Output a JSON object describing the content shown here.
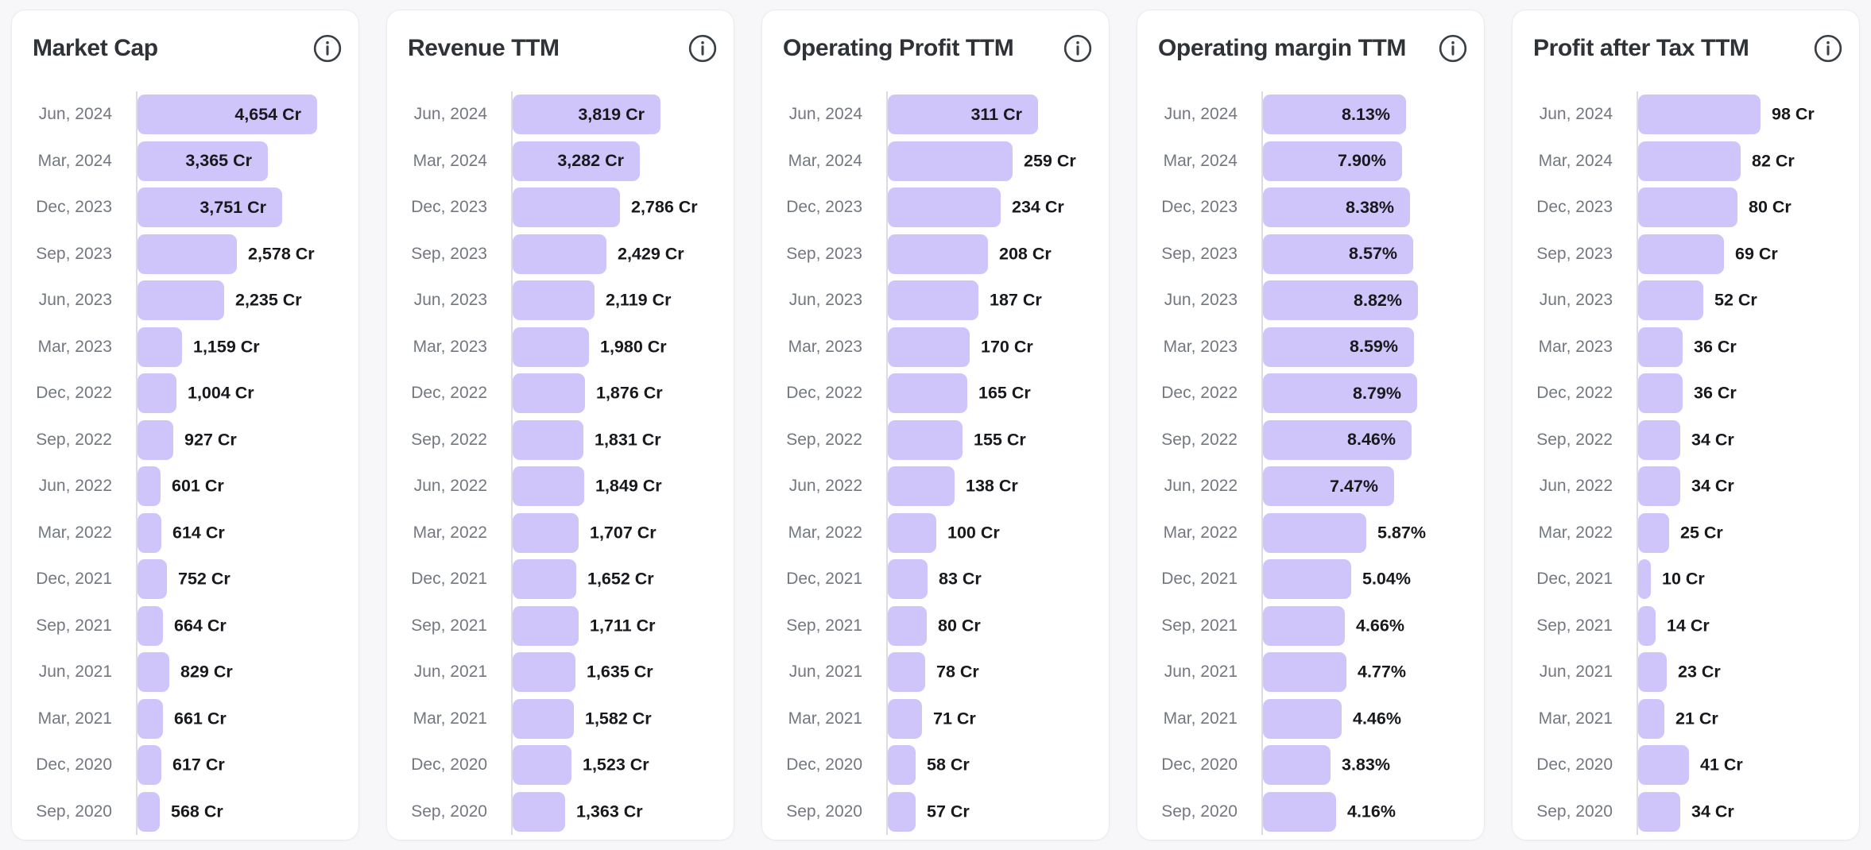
{
  "colors": {
    "page_bg": "#f7f7f9",
    "card_bg": "#ffffff",
    "card_border": "#ebebee",
    "title": "#2f3338",
    "category_label": "#73777f",
    "value_label": "#17191d",
    "bar": "#cfc5fa",
    "axis_line": "#dcdce4",
    "info_icon": "#3b4046"
  },
  "categories": [
    "Jun, 2024",
    "Mar, 2024",
    "Dec, 2023",
    "Sep, 2023",
    "Jun, 2023",
    "Mar, 2023",
    "Dec, 2022",
    "Sep, 2022",
    "Jun, 2022",
    "Mar, 2022",
    "Dec, 2021",
    "Sep, 2021",
    "Jun, 2021",
    "Mar, 2021",
    "Dec, 2020",
    "Sep, 2020"
  ],
  "chart_data": [
    {
      "type": "bar",
      "orientation": "horizontal",
      "title": "Market Cap",
      "unit": "Cr",
      "legend": "none",
      "grid": "off",
      "xmax_est": 5000,
      "categories": [
        "Jun, 2024",
        "Mar, 2024",
        "Dec, 2023",
        "Sep, 2023",
        "Jun, 2023",
        "Mar, 2023",
        "Dec, 2022",
        "Sep, 2022",
        "Jun, 2022",
        "Mar, 2022",
        "Dec, 2021",
        "Sep, 2021",
        "Jun, 2021",
        "Mar, 2021",
        "Dec, 2020",
        "Sep, 2020"
      ],
      "values": [
        4654,
        3365,
        3751,
        2578,
        2235,
        1159,
        1004,
        927,
        601,
        614,
        752,
        664,
        829,
        661,
        617,
        568
      ],
      "labels": [
        "4,654 Cr",
        "3,365 Cr",
        "3,751 Cr",
        "2,578 Cr",
        "2,235 Cr",
        "1,159 Cr",
        "1,004 Cr",
        "927 Cr",
        "601 Cr",
        "614 Cr",
        "752 Cr",
        "664 Cr",
        "829 Cr",
        "661 Cr",
        "617 Cr",
        "568 Cr"
      ]
    },
    {
      "type": "bar",
      "orientation": "horizontal",
      "title": "Revenue TTM",
      "unit": "Cr",
      "legend": "none",
      "grid": "off",
      "xmax_est": 5000,
      "categories": [
        "Jun, 2024",
        "Mar, 2024",
        "Dec, 2023",
        "Sep, 2023",
        "Jun, 2023",
        "Mar, 2023",
        "Dec, 2022",
        "Sep, 2022",
        "Jun, 2022",
        "Mar, 2022",
        "Dec, 2021",
        "Sep, 2021",
        "Jun, 2021",
        "Mar, 2021",
        "Dec, 2020",
        "Sep, 2020"
      ],
      "values": [
        3819,
        3282,
        2786,
        2429,
        2119,
        1980,
        1876,
        1831,
        1849,
        1707,
        1652,
        1711,
        1635,
        1582,
        1523,
        1363
      ],
      "labels": [
        "3,819 Cr",
        "3,282 Cr",
        "2,786 Cr",
        "2,429 Cr",
        "2,119 Cr",
        "1,980 Cr",
        "1,876 Cr",
        "1,831 Cr",
        "1,849 Cr",
        "1,707 Cr",
        "1,652 Cr",
        "1,711 Cr",
        "1,635 Cr",
        "1,582 Cr",
        "1,523 Cr",
        "1,363 Cr"
      ]
    },
    {
      "type": "bar",
      "orientation": "horizontal",
      "title": "Operating Profit TTM",
      "unit": "Cr",
      "legend": "none",
      "grid": "off",
      "xmax_est": 400,
      "categories": [
        "Jun, 2024",
        "Mar, 2024",
        "Dec, 2023",
        "Sep, 2023",
        "Jun, 2023",
        "Mar, 2023",
        "Dec, 2022",
        "Sep, 2022",
        "Jun, 2022",
        "Mar, 2022",
        "Dec, 2021",
        "Sep, 2021",
        "Jun, 2021",
        "Mar, 2021",
        "Dec, 2020",
        "Sep, 2020"
      ],
      "values": [
        311,
        259,
        234,
        208,
        187,
        170,
        165,
        155,
        138,
        100,
        83,
        80,
        78,
        71,
        58,
        57
      ],
      "labels": [
        "311 Cr",
        "259 Cr",
        "234 Cr",
        "208 Cr",
        "187 Cr",
        "170 Cr",
        "165 Cr",
        "155 Cr",
        "138 Cr",
        "100 Cr",
        "83 Cr",
        "80 Cr",
        "78 Cr",
        "71 Cr",
        "58 Cr",
        "57 Cr"
      ]
    },
    {
      "type": "bar",
      "orientation": "horizontal",
      "title": "Operating margin TTM",
      "unit": "%",
      "legend": "none",
      "grid": "off",
      "xmax_est": 11,
      "categories": [
        "Jun, 2024",
        "Mar, 2024",
        "Dec, 2023",
        "Sep, 2023",
        "Jun, 2023",
        "Mar, 2023",
        "Dec, 2022",
        "Sep, 2022",
        "Jun, 2022",
        "Mar, 2022",
        "Dec, 2021",
        "Sep, 2021",
        "Jun, 2021",
        "Mar, 2021",
        "Dec, 2020",
        "Sep, 2020"
      ],
      "values": [
        8.13,
        7.9,
        8.38,
        8.57,
        8.82,
        8.59,
        8.79,
        8.46,
        7.47,
        5.87,
        5.04,
        4.66,
        4.77,
        4.46,
        3.83,
        4.16
      ],
      "labels": [
        "8.13%",
        "7.90%",
        "8.38%",
        "8.57%",
        "8.82%",
        "8.59%",
        "8.79%",
        "8.46%",
        "7.47%",
        "5.87%",
        "5.04%",
        "4.66%",
        "4.77%",
        "4.46%",
        "3.83%",
        "4.16%"
      ]
    },
    {
      "type": "bar",
      "orientation": "horizontal",
      "title": "Profit after Tax TTM",
      "unit": "Cr",
      "legend": "none",
      "grid": "off",
      "xmax_est": 155,
      "categories": [
        "Jun, 2024",
        "Mar, 2024",
        "Dec, 2023",
        "Sep, 2023",
        "Jun, 2023",
        "Mar, 2023",
        "Dec, 2022",
        "Sep, 2022",
        "Jun, 2022",
        "Mar, 2022",
        "Dec, 2021",
        "Sep, 2021",
        "Jun, 2021",
        "Mar, 2021",
        "Dec, 2020",
        "Sep, 2020"
      ],
      "values": [
        98,
        82,
        80,
        69,
        52,
        36,
        36,
        34,
        34,
        25,
        10,
        14,
        23,
        21,
        41,
        34
      ],
      "labels": [
        "98 Cr",
        "82 Cr",
        "80 Cr",
        "69 Cr",
        "52 Cr",
        "36 Cr",
        "36 Cr",
        "34 Cr",
        "34 Cr",
        "25 Cr",
        "10 Cr",
        "14 Cr",
        "23 Cr",
        "21 Cr",
        "41 Cr",
        "34 Cr"
      ]
    }
  ]
}
